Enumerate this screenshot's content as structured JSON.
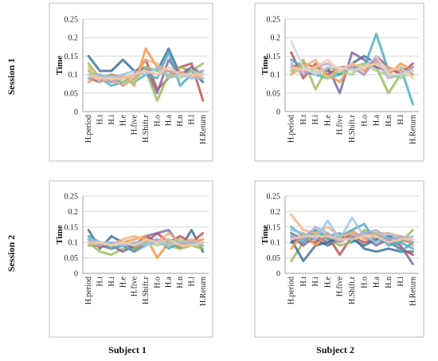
{
  "labels": {
    "rows": [
      "Session 1",
      "Session 2"
    ],
    "cols": [
      "Subject 1",
      "Subject 2"
    ]
  },
  "chart_data": [
    {
      "type": "line",
      "row": "Session 1",
      "col": "Subject 1",
      "ylabel": "Time",
      "ylim": [
        0,
        0.25
      ],
      "yticks": [
        "0",
        "0.05",
        "0.1",
        "0.15",
        "0.2",
        "0.25"
      ],
      "categories": [
        "H.period",
        "H.t",
        "H.i",
        "H.e",
        "H.five",
        "H.Shift.r",
        "H.o",
        "H.a",
        "H.n",
        "H.l",
        "H.Return"
      ],
      "grid": true,
      "series": [
        {
          "color": "#3e6c95",
          "values": [
            0.15,
            0.11,
            0.11,
            0.14,
            0.11,
            0.12,
            0.11,
            0.17,
            0.1,
            0.11,
            0.08
          ]
        },
        {
          "color": "#c0504d",
          "values": [
            0.1,
            0.09,
            0.1,
            0.09,
            0.1,
            0.14,
            0.06,
            0.09,
            0.12,
            0.13,
            0.03
          ]
        },
        {
          "color": "#9bbb59",
          "values": [
            0.13,
            0.09,
            0.08,
            0.08,
            0.1,
            0.11,
            0.03,
            0.1,
            0.12,
            0.11,
            0.13
          ]
        },
        {
          "color": "#8064a2",
          "values": [
            0.09,
            0.08,
            0.1,
            0.07,
            0.09,
            0.12,
            0.05,
            0.14,
            0.1,
            0.12,
            0.1
          ]
        },
        {
          "color": "#4bacc6",
          "values": [
            0.11,
            0.09,
            0.07,
            0.08,
            0.08,
            0.1,
            0.09,
            0.16,
            0.07,
            0.1,
            0.11
          ]
        },
        {
          "color": "#f79646",
          "values": [
            0.08,
            0.1,
            0.08,
            0.1,
            0.07,
            0.17,
            0.12,
            0.11,
            0.1,
            0.1,
            0.09
          ]
        },
        {
          "color": "#f4b183",
          "values": [
            0.12,
            0.08,
            0.09,
            0.07,
            0.09,
            0.14,
            0.13,
            0.09,
            0.11,
            0.09,
            0.1
          ]
        },
        {
          "color": "#b4a7d6",
          "values": [
            0.1,
            0.1,
            0.08,
            0.09,
            0.1,
            0.11,
            0.1,
            0.11,
            0.1,
            0.1,
            0.11
          ]
        },
        {
          "color": "#a9d18e",
          "values": [
            0.11,
            0.09,
            0.1,
            0.08,
            0.08,
            0.12,
            0.11,
            0.1,
            0.09,
            0.11,
            0.1
          ]
        },
        {
          "color": "#9dc3e6",
          "values": [
            0.09,
            0.1,
            0.09,
            0.1,
            0.11,
            0.1,
            0.12,
            0.09,
            0.1,
            0.09,
            0.09
          ]
        },
        {
          "color": "#f8cbad",
          "values": [
            0.1,
            0.09,
            0.09,
            0.09,
            0.1,
            0.11,
            0.1,
            0.12,
            0.1,
            0.1,
            0.1
          ]
        }
      ]
    },
    {
      "type": "line",
      "row": "Session 1",
      "col": "Subject 2",
      "ylabel": "Time",
      "ylim": [
        0,
        0.25
      ],
      "yticks": [
        "0",
        "0.05",
        "0.1",
        "0.15",
        "0.2",
        "0.25"
      ],
      "categories": [
        "H.period",
        "H.t",
        "H.i",
        "H.e",
        "H.five",
        "H.Shift.r",
        "H.o",
        "H.a",
        "H.n",
        "H.l",
        "H.Return"
      ],
      "grid": true,
      "series": [
        {
          "color": "#3e6c95",
          "values": [
            0.12,
            0.13,
            0.12,
            0.11,
            0.1,
            0.13,
            0.15,
            0.13,
            0.11,
            0.12,
            0.1
          ]
        },
        {
          "color": "#c0504d",
          "values": [
            0.16,
            0.09,
            0.13,
            0.1,
            0.12,
            0.12,
            0.1,
            0.15,
            0.12,
            0.1,
            0.13
          ]
        },
        {
          "color": "#9bbb59",
          "values": [
            0.1,
            0.14,
            0.06,
            0.12,
            0.11,
            0.12,
            0.13,
            0.12,
            0.05,
            0.1,
            0.12
          ]
        },
        {
          "color": "#8064a2",
          "values": [
            0.12,
            0.11,
            0.1,
            0.12,
            0.05,
            0.16,
            0.14,
            0.12,
            0.11,
            0.11,
            0.12
          ]
        },
        {
          "color": "#4bacc6",
          "values": [
            0.14,
            0.12,
            0.1,
            0.09,
            0.1,
            0.12,
            0.12,
            0.21,
            0.11,
            0.12,
            0.02
          ]
        },
        {
          "color": "#f79646",
          "values": [
            0.11,
            0.13,
            0.12,
            0.1,
            0.08,
            0.13,
            0.11,
            0.14,
            0.1,
            0.13,
            0.11
          ]
        },
        {
          "color": "#f4b183",
          "values": [
            0.1,
            0.12,
            0.14,
            0.09,
            0.12,
            0.11,
            0.12,
            0.13,
            0.12,
            0.11,
            0.1
          ]
        },
        {
          "color": "#b4a7d6",
          "values": [
            0.13,
            0.1,
            0.12,
            0.13,
            0.11,
            0.12,
            0.1,
            0.14,
            0.09,
            0.1,
            0.12
          ]
        },
        {
          "color": "#a9d18e",
          "values": [
            0.11,
            0.12,
            0.11,
            0.09,
            0.11,
            0.1,
            0.13,
            0.11,
            0.1,
            0.09,
            0.11
          ]
        },
        {
          "color": "#ccdbe8",
          "values": [
            0.19,
            0.12,
            0.1,
            0.12,
            0.12,
            0.11,
            0.12,
            0.15,
            0.1,
            0.1,
            0.11
          ]
        },
        {
          "color": "#f8cbad",
          "values": [
            0.12,
            0.11,
            0.12,
            0.14,
            0.11,
            0.13,
            0.12,
            0.13,
            0.11,
            0.12,
            0.09
          ]
        }
      ]
    },
    {
      "type": "line",
      "row": "Session 2",
      "col": "Subject 1",
      "ylabel": "Time",
      "ylim": [
        0,
        0.25
      ],
      "yticks": [
        "0",
        "0.05",
        "0.1",
        "0.15",
        "0.2",
        "0.25"
      ],
      "categories": [
        "H.period",
        "H.t",
        "H.i",
        "H.e",
        "H.five",
        "H.Shift.r",
        "H.o",
        "H.a",
        "H.n",
        "H.l",
        "H.Return"
      ],
      "grid": true,
      "series": [
        {
          "color": "#3e6c95",
          "values": [
            0.14,
            0.08,
            0.12,
            0.1,
            0.08,
            0.12,
            0.1,
            0.11,
            0.08,
            0.14,
            0.07
          ]
        },
        {
          "color": "#c0504d",
          "values": [
            0.09,
            0.09,
            0.08,
            0.09,
            0.07,
            0.1,
            0.13,
            0.1,
            0.12,
            0.1,
            0.13
          ]
        },
        {
          "color": "#9bbb59",
          "values": [
            0.1,
            0.07,
            0.06,
            0.08,
            0.08,
            0.11,
            0.1,
            0.09,
            0.08,
            0.09,
            0.08
          ]
        },
        {
          "color": "#8064a2",
          "values": [
            0.11,
            0.09,
            0.09,
            0.07,
            0.09,
            0.12,
            0.13,
            0.14,
            0.09,
            0.1,
            0.09
          ]
        },
        {
          "color": "#4bacc6",
          "values": [
            0.12,
            0.1,
            0.08,
            0.09,
            0.07,
            0.09,
            0.11,
            0.08,
            0.1,
            0.09,
            0.1
          ]
        },
        {
          "color": "#f79646",
          "values": [
            0.1,
            0.09,
            0.1,
            0.1,
            0.11,
            0.12,
            0.05,
            0.1,
            0.09,
            0.1,
            0.11
          ]
        },
        {
          "color": "#f4b183",
          "values": [
            0.09,
            0.1,
            0.09,
            0.11,
            0.12,
            0.11,
            0.1,
            0.13,
            0.1,
            0.11,
            0.1
          ]
        },
        {
          "color": "#b4a7d6",
          "values": [
            0.1,
            0.09,
            0.1,
            0.09,
            0.1,
            0.1,
            0.11,
            0.1,
            0.1,
            0.1,
            0.1
          ]
        },
        {
          "color": "#a9d18e",
          "values": [
            0.09,
            0.1,
            0.09,
            0.1,
            0.09,
            0.1,
            0.09,
            0.1,
            0.11,
            0.09,
            0.09
          ]
        },
        {
          "color": "#9dc3e6",
          "values": [
            0.11,
            0.1,
            0.1,
            0.09,
            0.1,
            0.09,
            0.1,
            0.09,
            0.1,
            0.1,
            0.1
          ]
        },
        {
          "color": "#f8cbad",
          "values": [
            0.1,
            0.1,
            0.09,
            0.1,
            0.09,
            0.11,
            0.1,
            0.11,
            0.09,
            0.09,
            0.1
          ]
        }
      ]
    },
    {
      "type": "line",
      "row": "Session 2",
      "col": "Subject 2",
      "ylabel": "Time",
      "ylim": [
        0,
        0.25
      ],
      "yticks": [
        "0",
        "0.05",
        "0.1",
        "0.15",
        "0.2",
        "0.25"
      ],
      "categories": [
        "H.period",
        "H.t",
        "H.i",
        "H.e",
        "H.five",
        "H.Shift.r",
        "H.o",
        "H.a",
        "H.n",
        "H.l",
        "H.Return"
      ],
      "grid": true,
      "series": [
        {
          "color": "#3e6c95",
          "values": [
            0.1,
            0.12,
            0.11,
            0.09,
            0.11,
            0.12,
            0.08,
            0.07,
            0.08,
            0.07,
            0.07
          ]
        },
        {
          "color": "#c0504d",
          "values": [
            0.13,
            0.11,
            0.1,
            0.12,
            0.06,
            0.12,
            0.1,
            0.11,
            0.1,
            0.08,
            0.06
          ]
        },
        {
          "color": "#9bbb59",
          "values": [
            0.04,
            0.1,
            0.13,
            0.11,
            0.09,
            0.1,
            0.14,
            0.12,
            0.12,
            0.1,
            0.14
          ]
        },
        {
          "color": "#8064a2",
          "values": [
            0.12,
            0.09,
            0.12,
            0.1,
            0.11,
            0.13,
            0.12,
            0.09,
            0.11,
            0.09,
            0.03
          ]
        },
        {
          "color": "#4bacc6",
          "values": [
            0.15,
            0.12,
            0.14,
            0.12,
            0.13,
            0.1,
            0.13,
            0.13,
            0.09,
            0.1,
            0.08
          ]
        },
        {
          "color": "#3e6c95",
          "values": [
            0.11,
            0.04,
            0.09,
            0.1,
            0.12,
            0.11,
            0.09,
            0.11,
            0.12,
            0.11,
            0.1
          ]
        },
        {
          "color": "#f79646",
          "values": [
            0.08,
            0.13,
            0.09,
            0.13,
            0.1,
            0.14,
            0.11,
            0.12,
            0.11,
            0.12,
            0.09
          ]
        },
        {
          "color": "#4bacc6",
          "values": [
            0.13,
            0.1,
            0.14,
            0.11,
            0.12,
            0.14,
            0.16,
            0.1,
            0.12,
            0.07,
            0.1
          ]
        },
        {
          "color": "#f4b183",
          "values": [
            0.19,
            0.14,
            0.13,
            0.15,
            0.12,
            0.13,
            0.12,
            0.13,
            0.13,
            0.12,
            0.11
          ]
        },
        {
          "color": "#b4a7d6",
          "values": [
            0.12,
            0.11,
            0.15,
            0.13,
            0.1,
            0.12,
            0.13,
            0.14,
            0.11,
            0.12,
            0.1
          ]
        },
        {
          "color": "#9dc3e6",
          "values": [
            0.14,
            0.13,
            0.11,
            0.17,
            0.11,
            0.18,
            0.12,
            0.1,
            0.13,
            0.11,
            0.12
          ]
        },
        {
          "color": "#f8cbad",
          "values": [
            0.11,
            0.12,
            0.12,
            0.12,
            0.11,
            0.11,
            0.12,
            0.12,
            0.1,
            0.11,
            0.11
          ]
        }
      ]
    }
  ]
}
